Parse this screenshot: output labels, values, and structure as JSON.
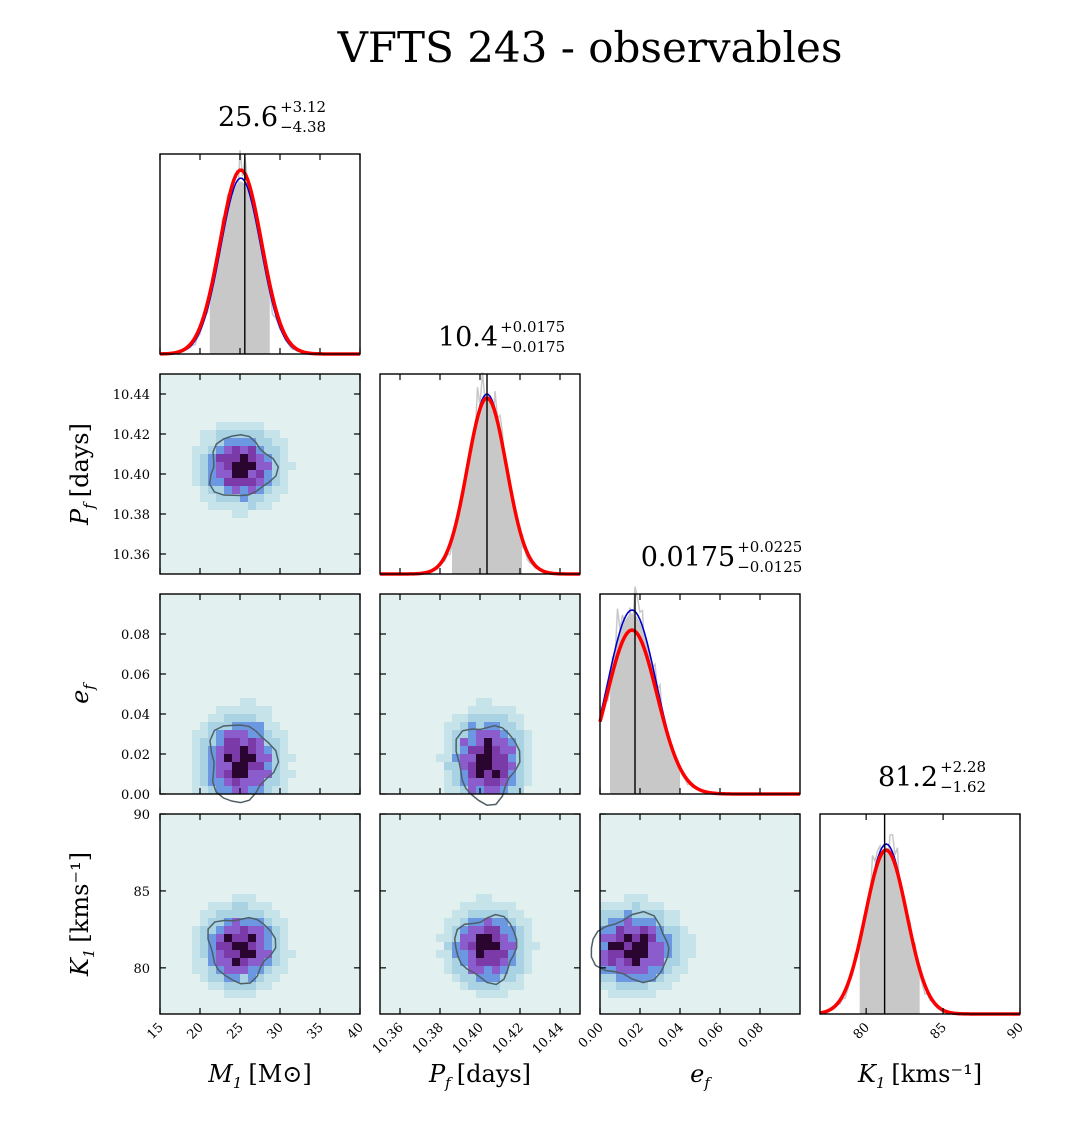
{
  "chart_data": {
    "type": "corner",
    "title": "VFTS 243 - observables",
    "colors": {
      "kde_fit": "#ff0000",
      "posterior_line": "#0000cc",
      "raw_histogram": "#c8c8c8",
      "credible_fill": "#c8c8c8",
      "median_line": "#000000",
      "contour": "#4f5f66",
      "density_background": "#e2f0f0",
      "density_low": "#a9d3e2",
      "density_mid": "#6b98e0",
      "density_high": "#7a3aa8",
      "density_peak": "#2a0530"
    },
    "parameters": [
      {
        "name": "M1",
        "label_main": "M",
        "label_sub": "1",
        "label_unit": "[M⊙]",
        "range": [
          15,
          40
        ],
        "ticks": [
          15,
          20,
          25,
          30,
          35,
          40
        ],
        "tick_labels": [
          "15",
          "20",
          "25",
          "30",
          "35",
          "40"
        ],
        "median": 25.6,
        "plus": "+3.12",
        "minus": "−4.38",
        "median_text": "25.6",
        "credible_interval": [
          21.22,
          28.72
        ],
        "mean": 25.1,
        "sigma": 2.6
      },
      {
        "name": "Pf",
        "label_main": "P",
        "label_sub": "f",
        "label_unit": "[days]",
        "range": [
          10.35,
          10.45
        ],
        "ticks": [
          10.36,
          10.38,
          10.4,
          10.42,
          10.44
        ],
        "tick_labels": [
          "10.36",
          "10.38",
          "10.40",
          "10.42",
          "10.44"
        ],
        "median": 10.4035,
        "plus": "+0.0175",
        "minus": "−0.0175",
        "median_text": "10.4",
        "credible_interval": [
          10.386,
          10.421
        ],
        "mean": 10.4035,
        "sigma": 0.0098
      },
      {
        "name": "ef",
        "label_main": "e",
        "label_sub": "f",
        "label_unit": "",
        "range": [
          0.0,
          0.1
        ],
        "ticks": [
          0.0,
          0.02,
          0.04,
          0.06,
          0.08
        ],
        "tick_labels": [
          "0.00",
          "0.02",
          "0.04",
          "0.06",
          "0.08"
        ],
        "median": 0.0175,
        "plus": "+0.0225",
        "minus": "−0.0125",
        "median_text": "0.0175",
        "credible_interval": [
          0.005,
          0.04
        ],
        "mean": 0.016,
        "sigma": 0.0125
      },
      {
        "name": "K1",
        "label_main": "K",
        "label_sub": "1",
        "label_unit": "[kms⁻¹]",
        "range": [
          77,
          90
        ],
        "ticks": [
          80,
          85,
          90
        ],
        "tick_labels": [
          "80",
          "85",
          "90"
        ],
        "median": 81.2,
        "plus": "+2.28",
        "minus": "−1.62",
        "median_text": "81.2",
        "credible_interval": [
          79.58,
          83.48
        ],
        "mean": 81.3,
        "sigma": 1.35
      }
    ],
    "diagonal_peaks": [
      {
        "fit_peak": 0.92,
        "posterior_peak": 0.88
      },
      {
        "fit_peak": 0.88,
        "posterior_peak": 0.9
      },
      {
        "fit_peak": 0.82,
        "posterior_peak": 0.92
      },
      {
        "fit_peak": 0.82,
        "posterior_peak": 0.85
      }
    ]
  }
}
